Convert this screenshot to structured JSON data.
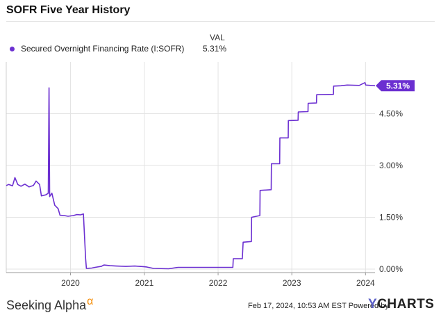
{
  "header": {
    "title": "SOFR Five Year History"
  },
  "legend": {
    "column_header": "VAL",
    "entries": [
      {
        "name": "Secured Overnight Financing Rate (I:SOFR)",
        "value": "5.31%"
      }
    ]
  },
  "current_value_label": "5.31%",
  "colors": {
    "series": "#6b2fd1",
    "grid": "#e3e3e3",
    "axis_text": "#333333",
    "brand_alpha": "#f48c06",
    "ycharts_y": "#5b5fc7"
  },
  "footer": {
    "brand_name": "Seeking Alpha",
    "brand_mark": "α",
    "timestamp": "Feb 17, 2024, 10:53 AM EST Powered by",
    "provider_y": "Y",
    "provider_rest": "CHARTS"
  },
  "chart_data": {
    "type": "line",
    "x_axis": {
      "type": "date",
      "range": [
        "2019-02-17",
        "2024-02-17"
      ],
      "ticks": [
        "2020",
        "2021",
        "2022",
        "2023",
        "2024"
      ]
    },
    "y_axis": {
      "position": "right",
      "ylim": [
        -0.1,
        6.0
      ],
      "ticks": [
        "0.00%",
        "1.50%",
        "3.00%",
        "4.50%"
      ],
      "tick_values": [
        0,
        1.5,
        3.0,
        4.5
      ]
    },
    "grid": true,
    "series": [
      {
        "name": "Secured Overnight Financing Rate (I:SOFR)",
        "points": [
          [
            "2019-02-17",
            2.42
          ],
          [
            "2019-03-01",
            2.45
          ],
          [
            "2019-03-20",
            2.41
          ],
          [
            "2019-04-01",
            2.65
          ],
          [
            "2019-04-15",
            2.45
          ],
          [
            "2019-05-01",
            2.4
          ],
          [
            "2019-05-20",
            2.46
          ],
          [
            "2019-06-10",
            2.38
          ],
          [
            "2019-07-01",
            2.42
          ],
          [
            "2019-07-15",
            2.55
          ],
          [
            "2019-08-01",
            2.45
          ],
          [
            "2019-08-10",
            2.12
          ],
          [
            "2019-09-01",
            2.15
          ],
          [
            "2019-09-13",
            2.2
          ],
          [
            "2019-09-17",
            5.25
          ],
          [
            "2019-09-20",
            2.1
          ],
          [
            "2019-10-01",
            2.2
          ],
          [
            "2019-10-15",
            1.85
          ],
          [
            "2019-11-01",
            1.75
          ],
          [
            "2019-11-10",
            1.56
          ],
          [
            "2019-12-01",
            1.55
          ],
          [
            "2019-12-20",
            1.53
          ],
          [
            "2020-01-15",
            1.55
          ],
          [
            "2020-02-01",
            1.58
          ],
          [
            "2020-02-20",
            1.57
          ],
          [
            "2020-03-05",
            1.6
          ],
          [
            "2020-03-16",
            0.3
          ],
          [
            "2020-03-20",
            0.02
          ],
          [
            "2020-04-15",
            0.03
          ],
          [
            "2020-05-01",
            0.05
          ],
          [
            "2020-06-01",
            0.08
          ],
          [
            "2020-06-15",
            0.12
          ],
          [
            "2020-07-15",
            0.1
          ],
          [
            "2020-08-15",
            0.09
          ],
          [
            "2020-10-01",
            0.08
          ],
          [
            "2020-11-15",
            0.09
          ],
          [
            "2020-12-31",
            0.07
          ],
          [
            "2021-01-15",
            0.06
          ],
          [
            "2021-02-15",
            0.02
          ],
          [
            "2021-05-01",
            0.01
          ],
          [
            "2021-06-17",
            0.05
          ],
          [
            "2021-09-01",
            0.05
          ],
          [
            "2021-12-01",
            0.05
          ],
          [
            "2022-03-15",
            0.05
          ],
          [
            "2022-03-17",
            0.3
          ],
          [
            "2022-05-01",
            0.3
          ],
          [
            "2022-05-05",
            0.78
          ],
          [
            "2022-06-15",
            0.8
          ],
          [
            "2022-06-16",
            1.5
          ],
          [
            "2022-07-27",
            1.55
          ],
          [
            "2022-07-28",
            2.28
          ],
          [
            "2022-09-21",
            2.3
          ],
          [
            "2022-09-22",
            3.05
          ],
          [
            "2022-11-02",
            3.05
          ],
          [
            "2022-11-03",
            3.8
          ],
          [
            "2022-12-14",
            3.8
          ],
          [
            "2022-12-15",
            4.3
          ],
          [
            "2023-02-01",
            4.31
          ],
          [
            "2023-02-02",
            4.55
          ],
          [
            "2023-03-22",
            4.56
          ],
          [
            "2023-03-23",
            4.8
          ],
          [
            "2023-05-03",
            4.81
          ],
          [
            "2023-05-04",
            5.05
          ],
          [
            "2023-07-26",
            5.06
          ],
          [
            "2023-07-27",
            5.3
          ],
          [
            "2023-09-01",
            5.31
          ],
          [
            "2023-10-02",
            5.33
          ],
          [
            "2023-12-01",
            5.32
          ],
          [
            "2023-12-29",
            5.4
          ],
          [
            "2024-01-02",
            5.33
          ],
          [
            "2024-02-17",
            5.31
          ]
        ]
      }
    ],
    "last_value_label": "5.31%"
  }
}
